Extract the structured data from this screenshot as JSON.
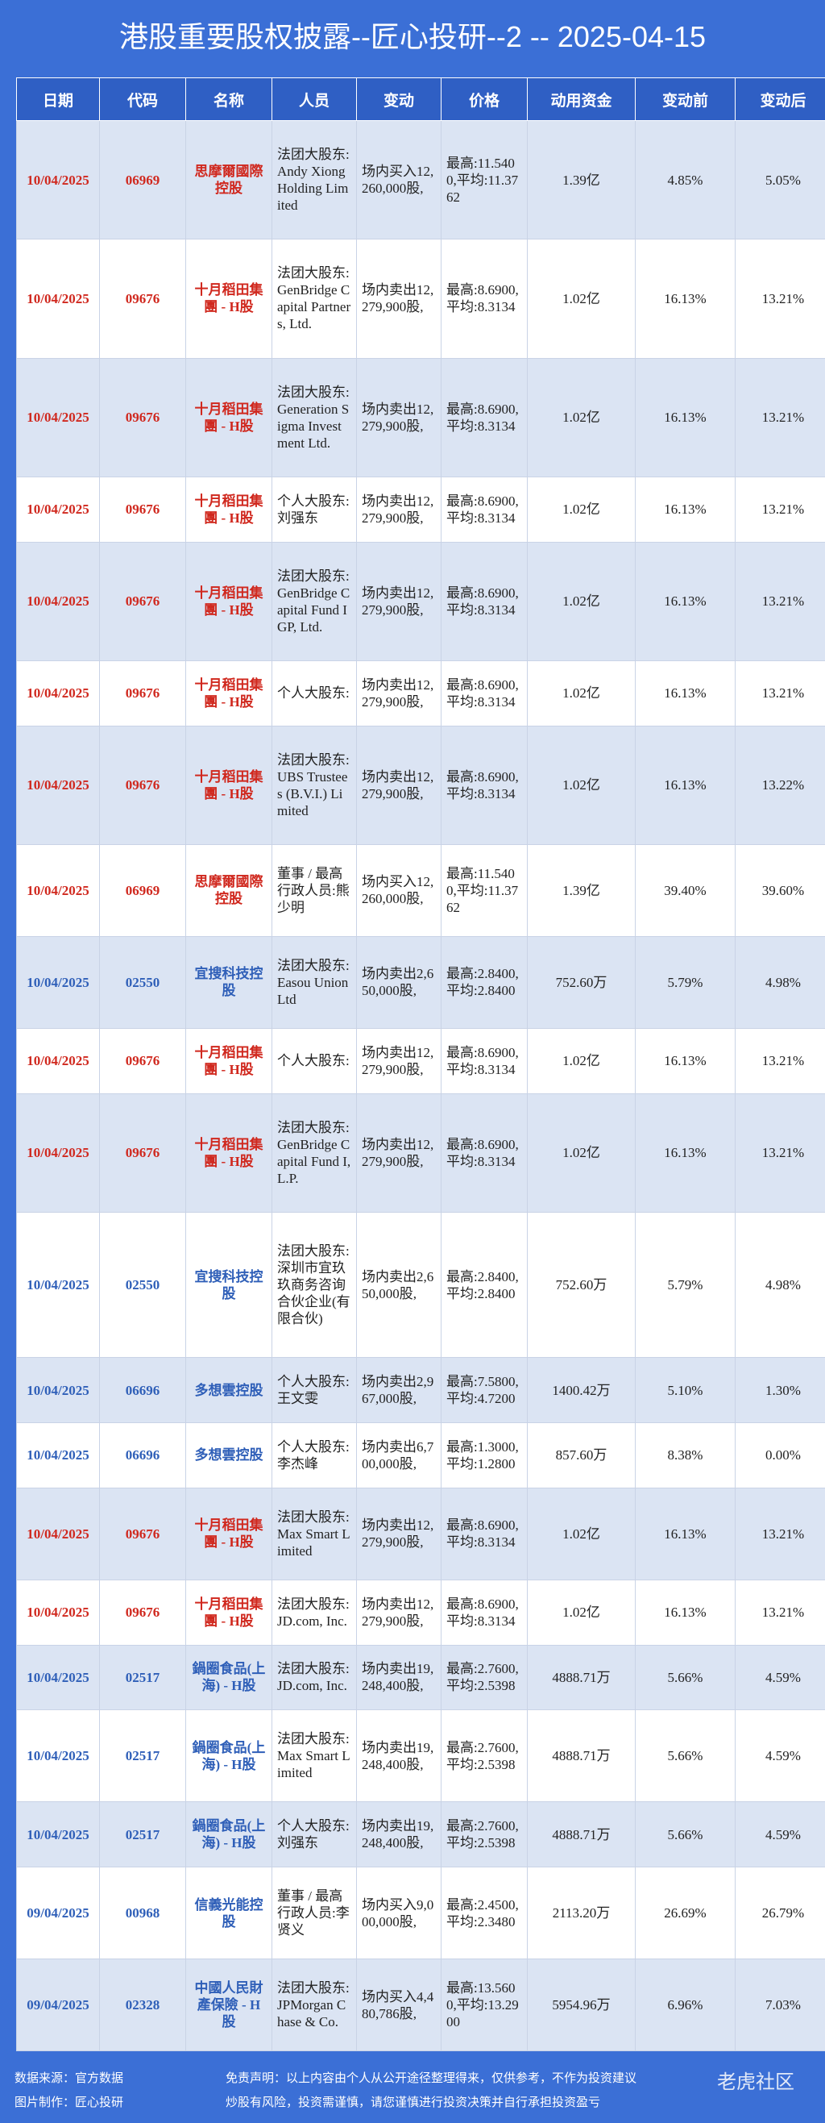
{
  "header": {
    "title": "港股重要股权披露--匠心投研--2 -- 2025-04-15"
  },
  "table": {
    "columns": [
      "日期",
      "代码",
      "名称",
      "人员",
      "变动",
      "价格",
      "动用资金",
      "变动前",
      "变动后"
    ],
    "rows": [
      {
        "color": "#d0281e",
        "cells": [
          "10/04/2025",
          "06969",
          "思摩爾國際控股",
          "法团大股东:Andy Xiong Holding Limited",
          "场内买入12,260,000股,",
          "最高:11.5400,平均:11.3762",
          "1.39亿",
          "4.85%",
          "5.05%"
        ]
      },
      {
        "color": "#d0281e",
        "cells": [
          "10/04/2025",
          "09676",
          "十月稻田集團 - H股",
          "法团大股东:GenBridge Capital Partners, Ltd.",
          "场内卖出12,279,900股,",
          "最高:8.6900,平均:8.3134",
          "1.02亿",
          "16.13%",
          "13.21%"
        ]
      },
      {
        "color": "#d0281e",
        "cells": [
          "10/04/2025",
          "09676",
          "十月稻田集團 - H股",
          "法团大股东:Generation Sigma Investment Ltd.",
          "场内卖出12,279,900股,",
          "最高:8.6900,平均:8.3134",
          "1.02亿",
          "16.13%",
          "13.21%"
        ]
      },
      {
        "color": "#d0281e",
        "cells": [
          "10/04/2025",
          "09676",
          "十月稻田集團 - H股",
          "个人大股东:刘强东",
          "场内卖出12,279,900股,",
          "最高:8.6900,平均:8.3134",
          "1.02亿",
          "16.13%",
          "13.21%"
        ]
      },
      {
        "color": "#d0281e",
        "cells": [
          "10/04/2025",
          "09676",
          "十月稻田集團 - H股",
          "法团大股东:GenBridge Capital Fund I GP, Ltd.",
          "场内卖出12,279,900股,",
          "最高:8.6900,平均:8.3134",
          "1.02亿",
          "16.13%",
          "13.21%"
        ]
      },
      {
        "color": "#d0281e",
        "cells": [
          "10/04/2025",
          "09676",
          "十月稻田集團 - H股",
          "个人大股东:",
          "场内卖出12,279,900股,",
          "最高:8.6900,平均:8.3134",
          "1.02亿",
          "16.13%",
          "13.21%"
        ]
      },
      {
        "color": "#d0281e",
        "cells": [
          "10/04/2025",
          "09676",
          "十月稻田集團 - H股",
          "法团大股东:UBS Trustees (B.V.I.) Limited",
          "场内卖出12,279,900股,",
          "最高:8.6900,平均:8.3134",
          "1.02亿",
          "16.13%",
          "13.22%"
        ]
      },
      {
        "color": "#d0281e",
        "cells": [
          "10/04/2025",
          "06969",
          "思摩爾國際控股",
          "董事 / 最高行政人员:熊少明",
          "场内买入12,260,000股,",
          "最高:11.5400,平均:11.3762",
          "1.39亿",
          "39.40%",
          "39.60%"
        ]
      },
      {
        "color": "#2f5fb8",
        "cells": [
          "10/04/2025",
          "02550",
          "宜搜科技控股",
          "法团大股东:Easou Union Ltd",
          "场内卖出2,650,000股,",
          "最高:2.8400,平均:2.8400",
          "752.60万",
          "5.79%",
          "4.98%"
        ]
      },
      {
        "color": "#d0281e",
        "cells": [
          "10/04/2025",
          "09676",
          "十月稻田集團 - H股",
          "个人大股东:",
          "场内卖出12,279,900股,",
          "最高:8.6900,平均:8.3134",
          "1.02亿",
          "16.13%",
          "13.21%"
        ]
      },
      {
        "color": "#d0281e",
        "cells": [
          "10/04/2025",
          "09676",
          "十月稻田集團 - H股",
          "法团大股东:GenBridge Capital Fund I, L.P.",
          "场内卖出12,279,900股,",
          "最高:8.6900,平均:8.3134",
          "1.02亿",
          "16.13%",
          "13.21%"
        ]
      },
      {
        "color": "#2f5fb8",
        "cells": [
          "10/04/2025",
          "02550",
          "宜搜科技控股",
          "法团大股东:深圳市宜玖玖商务咨询合伙企业(有限合伙)",
          "场内卖出2,650,000股,",
          "最高:2.8400,平均:2.8400",
          "752.60万",
          "5.79%",
          "4.98%"
        ]
      },
      {
        "color": "#2f5fb8",
        "cells": [
          "10/04/2025",
          "06696",
          "多想雲控股",
          "个人大股东:王文雯",
          "场内卖出2,967,000股,",
          "最高:7.5800,平均:4.7200",
          "1400.42万",
          "5.10%",
          "1.30%"
        ]
      },
      {
        "color": "#2f5fb8",
        "cells": [
          "10/04/2025",
          "06696",
          "多想雲控股",
          "个人大股东:李杰峰",
          "场内卖出6,700,000股,",
          "最高:1.3000,平均:1.2800",
          "857.60万",
          "8.38%",
          "0.00%"
        ]
      },
      {
        "color": "#d0281e",
        "cells": [
          "10/04/2025",
          "09676",
          "十月稻田集團 - H股",
          "法团大股东:Max Smart Limited",
          "场内卖出12,279,900股,",
          "最高:8.6900,平均:8.3134",
          "1.02亿",
          "16.13%",
          "13.21%"
        ]
      },
      {
        "color": "#d0281e",
        "cells": [
          "10/04/2025",
          "09676",
          "十月稻田集團 - H股",
          "法团大股东:JD.com, Inc.",
          "场内卖出12,279,900股,",
          "最高:8.6900,平均:8.3134",
          "1.02亿",
          "16.13%",
          "13.21%"
        ]
      },
      {
        "color": "#2f5fb8",
        "cells": [
          "10/04/2025",
          "02517",
          "鍋圈食品(上海) - H股",
          "法团大股东:JD.com, Inc.",
          "场内卖出19,248,400股,",
          "最高:2.7600,平均:2.5398",
          "4888.71万",
          "5.66%",
          "4.59%"
        ]
      },
      {
        "color": "#2f5fb8",
        "cells": [
          "10/04/2025",
          "02517",
          "鍋圈食品(上海) - H股",
          "法团大股东:Max Smart Limited",
          "场内卖出19,248,400股,",
          "最高:2.7600,平均:2.5398",
          "4888.71万",
          "5.66%",
          "4.59%"
        ]
      },
      {
        "color": "#2f5fb8",
        "cells": [
          "10/04/2025",
          "02517",
          "鍋圈食品(上海) - H股",
          "个人大股东:刘强东",
          "场内卖出19,248,400股,",
          "最高:2.7600,平均:2.5398",
          "4888.71万",
          "5.66%",
          "4.59%"
        ]
      },
      {
        "color": "#2f5fb8",
        "cells": [
          "09/04/2025",
          "00968",
          "信義光能控股",
          "董事 / 最高行政人员:李贤义",
          "场内买入9,000,000股,",
          "最高:2.4500,平均:2.3480",
          "2113.20万",
          "26.69%",
          "26.79%"
        ]
      },
      {
        "color": "#2f5fb8",
        "cells": [
          "09/04/2025",
          "02328",
          "中國人民財產保險 - H股",
          "法团大股东:JPMorgan Chase & Co.",
          "场内买入4,480,786股,",
          "最高:13.5600,平均:13.2900",
          "5954.96万",
          "6.96%",
          "7.03%"
        ]
      }
    ]
  },
  "footer": {
    "source": "数据来源：官方数据",
    "maker": "图片制作：匠心投研",
    "disclaimer": "免责声明：以上内容由个人从公开途径整理得来，仅供参考，不作为投资建议",
    "risk": "炒股有风险，投资需谨慎，请您谨慎进行投资决策并自行承担投资盈亏",
    "watermark": "老虎社区"
  }
}
